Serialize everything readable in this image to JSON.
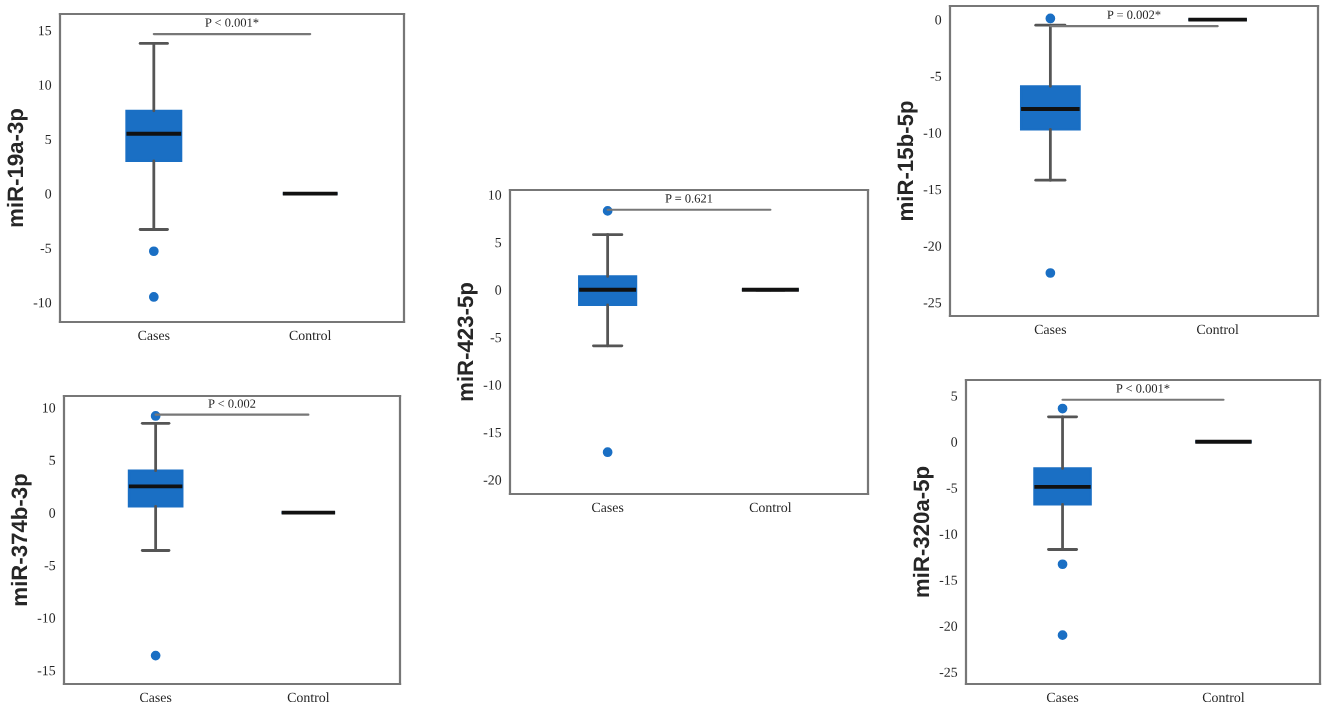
{
  "chart_data": [
    {
      "type": "box",
      "ylabel": "miR-19a-3p",
      "categories": [
        "Cases",
        "Control"
      ],
      "color": "#1a6fc4",
      "ylim": [
        -11.8,
        16.5
      ],
      "yticks": [
        {
          "value": -10,
          "label": "-10"
        },
        {
          "value": -5,
          "label": "-5"
        },
        0,
        5,
        10,
        15
      ],
      "grid": false,
      "boxes": [
        {
          "low": -3.3,
          "q1": 3,
          "median": 5.5,
          "q3": 7.6,
          "high": 13.8,
          "outliers": [
            -5.3,
            -9.5
          ]
        },
        {
          "low": 0,
          "q1": 0,
          "median": 0,
          "q3": 0,
          "high": 0
        }
      ],
      "annotations": [
        "P < 0.001*"
      ]
    },
    {
      "type": "box",
      "ylabel": "miR-374b-3p",
      "categories": [
        "Cases",
        "Control"
      ],
      "color": "#1a6fc4",
      "ylim": [
        -16.3,
        11.1
      ],
      "yticks": [
        {
          "value": -15,
          "label": "-15"
        },
        {
          "value": -10,
          "label": "-10"
        },
        {
          "value": -5,
          "label": "-5"
        },
        0,
        5,
        10
      ],
      "grid": false,
      "boxes": [
        {
          "low": -3.6,
          "q1": 0.6,
          "median": 2.5,
          "q3": 4,
          "high": 8.5,
          "outliers": [
            9.2,
            -13.6
          ]
        },
        {
          "low": 0,
          "q1": 0,
          "median": 0,
          "q3": 0,
          "high": 0
        }
      ],
      "annotations": [
        "P < 0.002"
      ]
    },
    {
      "type": "box",
      "ylabel": "miR-423-5p",
      "categories": [
        "Cases",
        "Control"
      ],
      "color": "#1a6fc4",
      "ylim": [
        -21.5,
        10.5
      ],
      "yticks": [
        {
          "value": -20,
          "label": "-20"
        },
        {
          "value": -15,
          "label": "-15"
        },
        {
          "value": -10,
          "label": "-10"
        },
        {
          "value": -5,
          "label": "-5"
        },
        0,
        5,
        10
      ],
      "grid": false,
      "boxes": [
        {
          "low": -5.9,
          "q1": -1.6,
          "median": 0,
          "q3": 1.4,
          "high": 5.8,
          "outliers": [
            8.3,
            -17.1
          ]
        },
        {
          "low": 0,
          "q1": 0,
          "median": 0,
          "q3": 0,
          "high": 0
        }
      ],
      "annotations": [
        "P = 0.621"
      ]
    },
    {
      "type": "box",
      "ylabel": "miR-15b-5p",
      "categories": [
        "Cases",
        "Control"
      ],
      "color": "#1a6fc4",
      "ylim": [
        -26.2,
        1.2
      ],
      "yticks": [
        {
          "value": -25,
          "label": "-25"
        },
        {
          "value": -20,
          "label": "-20"
        },
        {
          "value": -15,
          "label": "-15"
        },
        {
          "value": -10,
          "label": "-10"
        },
        {
          "value": -5,
          "label": "-5"
        },
        0
      ],
      "grid": false,
      "boxes": [
        {
          "low": -14.2,
          "q1": -9.7,
          "median": -7.9,
          "q3": -5.9,
          "high": -0.5,
          "outliers": [
            0.1,
            -22.4
          ]
        },
        {
          "low": 0,
          "q1": 0,
          "median": 0,
          "q3": 0,
          "high": 0
        }
      ],
      "annotations": [
        "P = 0.002*"
      ]
    },
    {
      "type": "box",
      "ylabel": "miR-320a-5p",
      "categories": [
        "Cases",
        "Control"
      ],
      "color": "#1a6fc4",
      "ylim": [
        -26.3,
        6.7
      ],
      "yticks": [
        {
          "value": -25,
          "label": "-25"
        },
        {
          "value": -20,
          "label": "-20"
        },
        {
          "value": -15,
          "label": "-15"
        },
        {
          "value": -10,
          "label": "-10"
        },
        {
          "value": -5,
          "label": "-5"
        },
        0,
        5
      ],
      "grid": false,
      "boxes": [
        {
          "low": -11.7,
          "q1": -6.8,
          "median": -4.9,
          "q3": -2.9,
          "high": 2.7,
          "outliers": [
            3.6,
            -13.3,
            -21
          ]
        },
        {
          "low": 0,
          "q1": 0,
          "median": 0,
          "q3": 0,
          "high": 0
        }
      ],
      "annotations": [
        "P < 0.001*"
      ]
    }
  ]
}
